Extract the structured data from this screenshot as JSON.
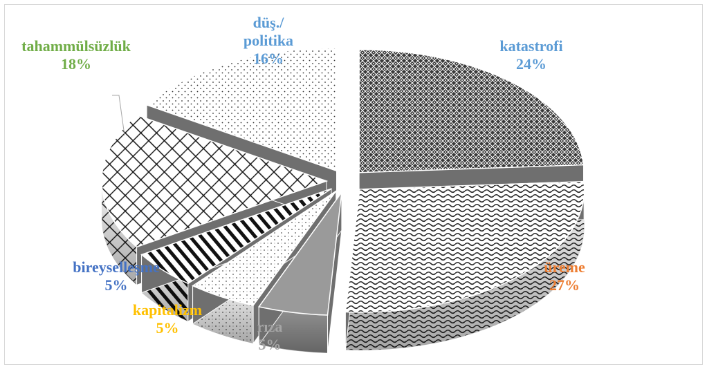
{
  "chart_data": {
    "type": "pie",
    "style": "3d-exploded-patterned",
    "slices": [
      {
        "label": "katastrofi",
        "display_label": [
          "katastrofi"
        ],
        "value": 24,
        "value_label": "24%",
        "color": "#5b9bd5",
        "pattern": "diamond-dots"
      },
      {
        "label": "üreme",
        "display_label": [
          "üreme"
        ],
        "value": 27,
        "value_label": "27%",
        "color": "#ed7d31",
        "pattern": "wave"
      },
      {
        "label": "rıza",
        "display_label": [
          "rıza"
        ],
        "value": 5,
        "value_label": "5%",
        "color": "#a5a5a5",
        "pattern": "solid-gray"
      },
      {
        "label": "kapitalizm",
        "display_label": [
          "kapitalizm"
        ],
        "value": 5,
        "value_label": "5%",
        "color": "#ffc000",
        "pattern": "dotted-grid"
      },
      {
        "label": "bireyselleşme",
        "display_label": [
          "bireyselleşme"
        ],
        "value": 5,
        "value_label": "5%",
        "color": "#4472c4",
        "pattern": "diagonal-stripes"
      },
      {
        "label": "tahammülsüzlük",
        "display_label": [
          "tahammülsüzlük"
        ],
        "value": 18,
        "value_label": "18%",
        "color": "#70ad47",
        "pattern": "crosshatch"
      },
      {
        "label": "düş./politika",
        "display_label": [
          "düş./",
          "politika"
        ],
        "value": 16,
        "value_label": "16%",
        "color": "#5b9bd5",
        "pattern": "dots"
      }
    ],
    "title": "",
    "legend": "none"
  }
}
